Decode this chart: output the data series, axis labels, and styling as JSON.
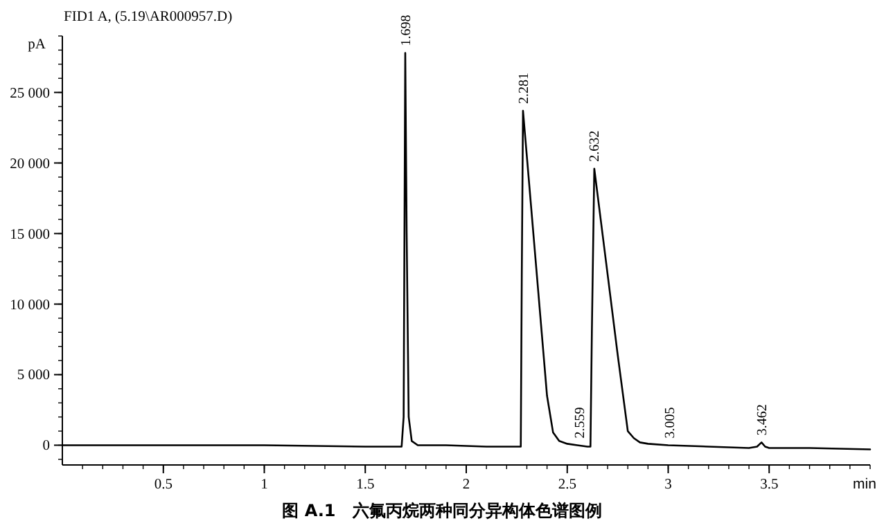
{
  "chart_data": {
    "type": "line",
    "title": "FID1 A, (5.19\\AR000957.D)",
    "ylabel": "pA",
    "xlabel": "min",
    "annotations": [
      {
        "text": "1.698",
        "x": 1.698,
        "y": 27800
      },
      {
        "text": "2.281",
        "x": 2.281,
        "y": 23700
      },
      {
        "text": "2.559",
        "x": 2.559,
        "y": 0
      },
      {
        "text": "2.632",
        "x": 2.632,
        "y": 19600
      },
      {
        "text": "3.005",
        "x": 3.005,
        "y": 0
      },
      {
        "text": "3.462",
        "x": 3.462,
        "y": 200
      },
      "图 A.1　六氟丙烷两种同分异构体色谱图例"
    ],
    "xlim": [
      0,
      4
    ],
    "ylim": [
      -1400,
      29000
    ],
    "xticks": [
      {
        "value": 0.5,
        "label": "0.5"
      },
      {
        "value": 1,
        "label": "1"
      },
      {
        "value": 1.5,
        "label": "1.5"
      },
      {
        "value": 2,
        "label": "2"
      },
      {
        "value": 2.5,
        "label": "2.5"
      },
      {
        "value": 3,
        "label": "3"
      },
      {
        "value": 3.5,
        "label": "3.5"
      }
    ],
    "yticks": [
      {
        "value": 0,
        "label": "0"
      },
      {
        "value": 5000,
        "label": "5 000"
      },
      {
        "value": 10000,
        "label": "10 000"
      },
      {
        "value": 15000,
        "label": "15 000"
      },
      {
        "value": 20000,
        "label": "20 000"
      },
      {
        "value": 25000,
        "label": "25 000"
      }
    ],
    "grid": false,
    "marker": "none",
    "line_style": "solid",
    "series": [
      {
        "color": "#000000",
        "x": [
          0,
          0.5,
          1,
          1.5,
          1.68,
          1.69,
          1.698,
          1.705,
          1.715,
          1.73,
          1.76,
          1.9,
          2.1,
          2.27,
          2.275,
          2.281,
          2.3,
          2.35,
          2.4,
          2.43,
          2.46,
          2.5,
          2.55,
          2.6,
          2.615,
          2.622,
          2.634,
          2.7,
          2.75,
          2.8,
          2.83,
          2.86,
          2.9,
          3.0,
          3.2,
          3.4,
          3.44,
          3.462,
          3.48,
          3.5,
          3.7,
          4.0
        ],
        "values": [
          0,
          0,
          0,
          -100,
          -100,
          2000,
          27800,
          15000,
          2000,
          300,
          0,
          0,
          -100,
          -100,
          12000,
          23700,
          20500,
          12000,
          3500,
          900,
          300,
          100,
          0,
          -100,
          -100,
          8000,
          19600,
          12100,
          6400,
          1000,
          500,
          200,
          100,
          0,
          -100,
          -200,
          -100,
          200,
          -100,
          -200,
          -200,
          -300
        ]
      }
    ]
  }
}
